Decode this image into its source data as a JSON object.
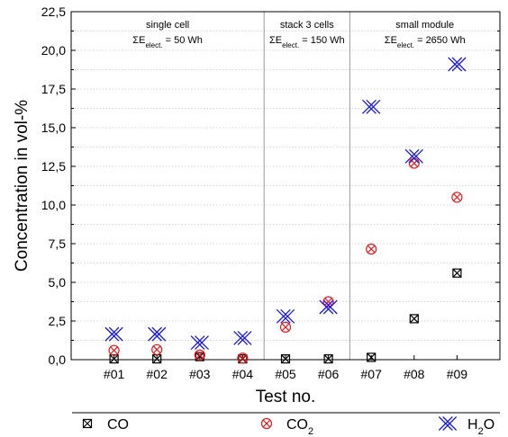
{
  "chart_data": {
    "type": "scatter",
    "xlabel": "Test no.",
    "ylabel": "Concentration in vol-%",
    "ylim": [
      0,
      22.5
    ],
    "yticks": [
      "0,0",
      "2,5",
      "5,0",
      "7,5",
      "10,0",
      "12,5",
      "15,0",
      "17,5",
      "20,0",
      "22,5"
    ],
    "categories": [
      "#01",
      "#02",
      "#03",
      "#04",
      "#05",
      "#06",
      "#07",
      "#08",
      "#09"
    ],
    "grid": "horizontal dotted",
    "legend_position": "bottom",
    "regions": [
      {
        "title": "single cell",
        "energy_prefix": "ΣE",
        "energy_sub": "elect.",
        "energy_value": " = 50 Wh",
        "from": 0,
        "to": 3
      },
      {
        "title": "stack 3 cells",
        "energy_prefix": "ΣE",
        "energy_sub": "elect.",
        "energy_value": " = 150 Wh",
        "from": 4,
        "to": 5
      },
      {
        "title": "small module",
        "energy_prefix": "ΣE",
        "energy_sub": "elect.",
        "energy_value": " = 2650 Wh",
        "from": 6,
        "to": 8
      }
    ],
    "series": [
      {
        "name": "CO",
        "label_main": "CO",
        "label_sub": "",
        "color": "#000000",
        "marker": "square-x",
        "values": [
          0.05,
          0.05,
          0.2,
          0.05,
          0.05,
          0.05,
          0.15,
          2.65,
          5.6
        ]
      },
      {
        "name": "CO2",
        "label_main": "CO",
        "label_sub": "2",
        "color": "#e8191b",
        "marker": "circle-x",
        "values": [
          0.6,
          0.65,
          0.3,
          0.1,
          2.1,
          3.75,
          7.15,
          12.7,
          10.5
        ]
      },
      {
        "name": "H2O",
        "label_main": "H",
        "label_sub": "2",
        "label_tail": "O",
        "color": "#1a1adc",
        "marker": "double-x",
        "values": [
          1.65,
          1.65,
          1.1,
          1.4,
          2.8,
          3.4,
          16.35,
          13.15,
          19.1
        ]
      }
    ]
  }
}
